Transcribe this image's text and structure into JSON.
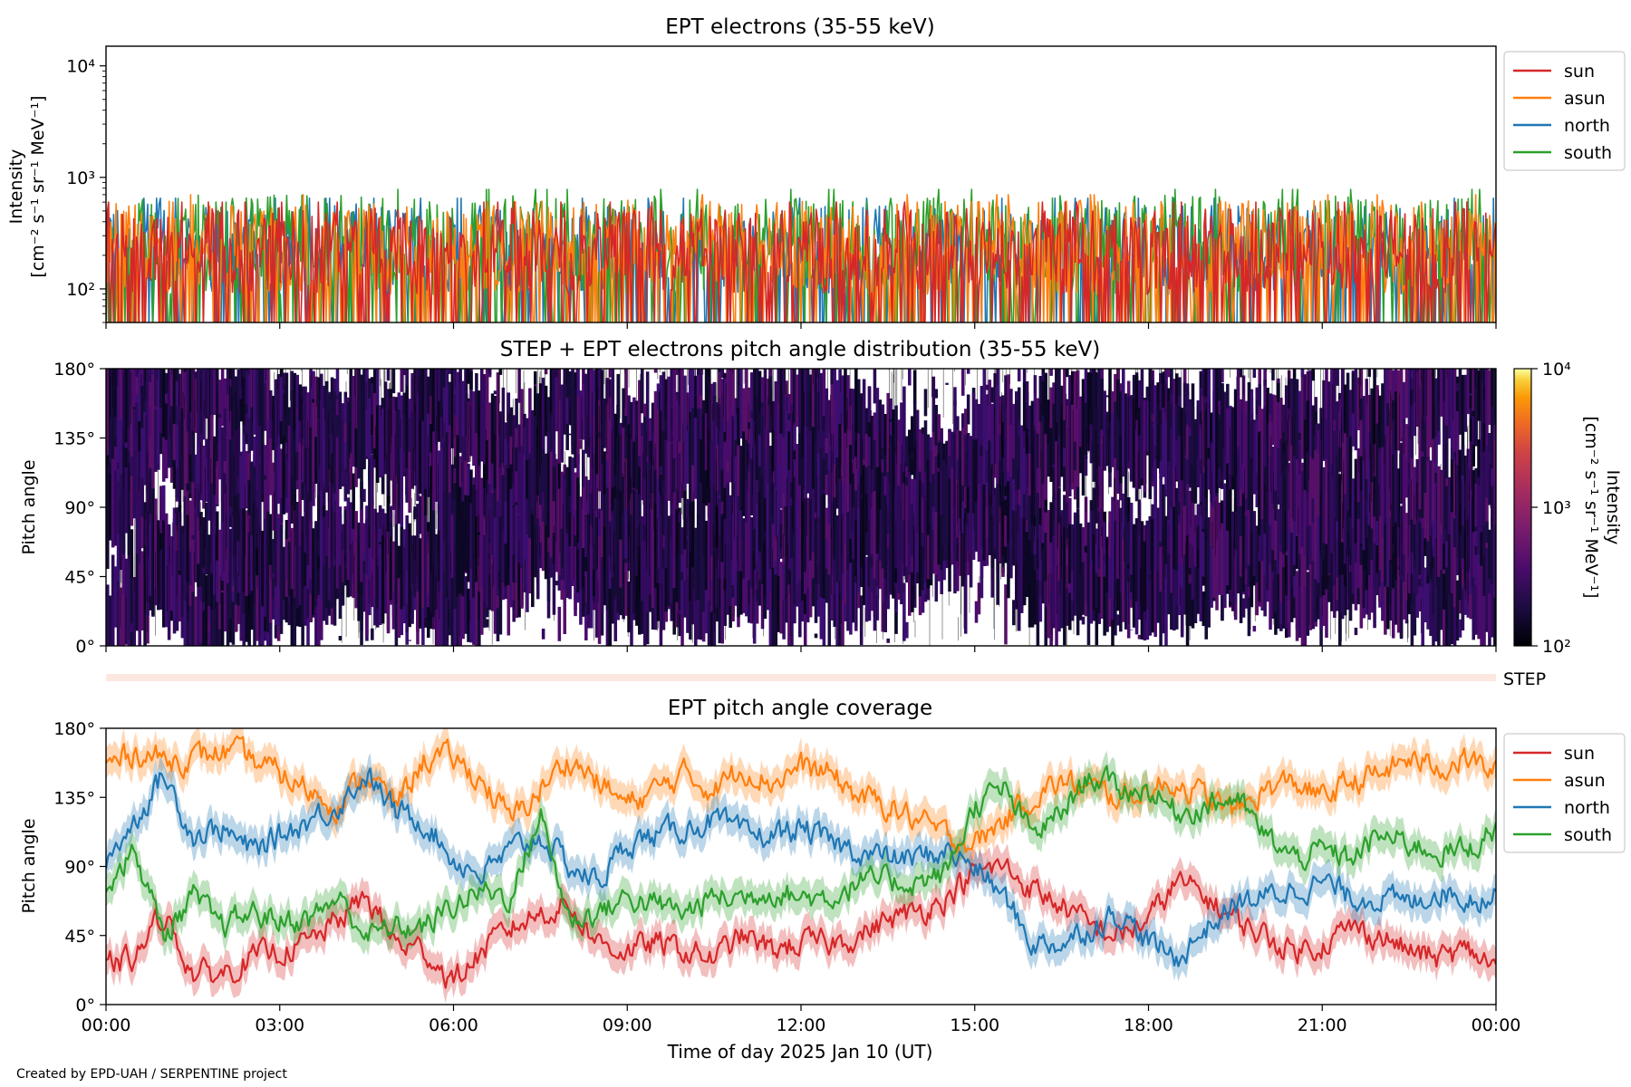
{
  "figure": {
    "credit": "Created by EPD-UAH / SERPENTINE project",
    "xlabel": "Time of day 2025 Jan 10 (UT)",
    "x_range_hours": [
      0,
      24
    ],
    "x_ticks": [
      "00:00",
      "03:00",
      "06:00",
      "09:00",
      "12:00",
      "15:00",
      "18:00",
      "21:00",
      "00:00"
    ]
  },
  "colors": {
    "sun": "#d62728",
    "asun": "#ff7f0e",
    "north": "#1f77b4",
    "south": "#2ca02c",
    "step_strip": "#fde8e0"
  },
  "chart_data": [
    {
      "type": "line",
      "title": "EPT electrons (35-55 keV)",
      "ylabel_line1": "Intensity",
      "ylabel_line2": "[cm⁻² s⁻¹ sr⁻¹ MeV⁻¹]",
      "y_scale": "log",
      "ylim": [
        50,
        15000
      ],
      "y_ticks": [
        {
          "value": 100,
          "label": "10²"
        },
        {
          "value": 1000,
          "label": "10³"
        },
        {
          "value": 10000,
          "label": "10⁴"
        }
      ],
      "legend_position": "outside-right",
      "grid": false,
      "series": [
        {
          "name": "sun",
          "typical_range": [
            50,
            600
          ]
        },
        {
          "name": "asun",
          "typical_range": [
            50,
            700
          ]
        },
        {
          "name": "north",
          "typical_range": [
            50,
            650
          ]
        },
        {
          "name": "south",
          "typical_range": [
            50,
            780
          ]
        }
      ]
    },
    {
      "type": "heatmap",
      "title": "STEP + EPT electrons pitch angle distribution (35-55 keV)",
      "ylabel": "Pitch angle",
      "ylim": [
        0,
        180
      ],
      "y_ticks": [
        "0°",
        "45°",
        "90°",
        "135°",
        "180°"
      ],
      "colorbar": {
        "label_line1": "Intensity",
        "label_line2": "[cm⁻² s⁻¹ sr⁻¹ MeV⁻¹]",
        "scale": "log",
        "range": [
          100,
          10000
        ],
        "ticks": [
          {
            "value": 100,
            "label": "10²"
          },
          {
            "value": 1000,
            "label": "10³"
          },
          {
            "value": 10000,
            "label": "10⁴"
          }
        ],
        "colormap": "inferno"
      },
      "step_label": "STEP"
    },
    {
      "type": "line",
      "title": "EPT pitch angle coverage",
      "ylabel": "Pitch angle",
      "ylim": [
        0,
        180
      ],
      "y_ticks": [
        "0°",
        "45°",
        "90°",
        "135°",
        "180°"
      ],
      "legend_position": "outside-right",
      "grid": false,
      "x_hours": [
        0,
        0.5,
        1,
        1.5,
        2,
        2.5,
        3,
        3.5,
        4,
        4.5,
        5,
        5.5,
        6,
        6.5,
        7,
        7.5,
        8,
        8.5,
        9,
        9.5,
        10,
        10.5,
        11,
        11.5,
        12,
        12.5,
        13,
        13.5,
        14,
        14.5,
        15,
        15.5,
        16,
        16.5,
        17,
        17.5,
        18,
        18.5,
        19,
        19.5,
        20,
        20.5,
        21,
        21.5,
        22,
        22.5,
        23,
        23.5,
        24
      ],
      "series": [
        {
          "name": "sun",
          "values": [
            25,
            30,
            60,
            20,
            20,
            30,
            35,
            40,
            55,
            70,
            40,
            35,
            15,
            35,
            50,
            60,
            65,
            40,
            35,
            40,
            35,
            30,
            45,
            35,
            40,
            40,
            45,
            55,
            60,
            70,
            85,
            90,
            75,
            65,
            50,
            45,
            55,
            80,
            70,
            55,
            45,
            35,
            40,
            50,
            45,
            35,
            30,
            35,
            25
          ]
        },
        {
          "name": "asun",
          "values": [
            155,
            165,
            160,
            160,
            165,
            160,
            150,
            140,
            130,
            150,
            130,
            160,
            160,
            145,
            120,
            140,
            160,
            145,
            130,
            140,
            150,
            140,
            155,
            145,
            155,
            150,
            135,
            130,
            120,
            110,
            105,
            120,
            135,
            145,
            140,
            135,
            140,
            145,
            135,
            125,
            140,
            145,
            135,
            145,
            150,
            160,
            155,
            160,
            150
          ]
        },
        {
          "name": "north",
          "values": [
            95,
            120,
            150,
            110,
            115,
            100,
            110,
            120,
            130,
            150,
            125,
            120,
            95,
            85,
            100,
            110,
            90,
            80,
            105,
            110,
            115,
            120,
            110,
            110,
            115,
            105,
            100,
            95,
            95,
            100,
            90,
            70,
            40,
            40,
            50,
            60,
            40,
            30,
            50,
            65,
            70,
            75,
            80,
            70,
            70,
            65,
            75,
            70,
            70
          ]
        },
        {
          "name": "south",
          "values": [
            80,
            100,
            45,
            70,
            50,
            60,
            55,
            55,
            70,
            45,
            50,
            50,
            65,
            75,
            70,
            125,
            55,
            60,
            70,
            65,
            60,
            70,
            70,
            75,
            70,
            70,
            80,
            80,
            80,
            85,
            130,
            140,
            110,
            125,
            150,
            140,
            140,
            125,
            130,
            135,
            110,
            95,
            100,
            95,
            110,
            105,
            100,
            100,
            115
          ]
        }
      ],
      "band_halfwidth_deg": 10
    }
  ]
}
